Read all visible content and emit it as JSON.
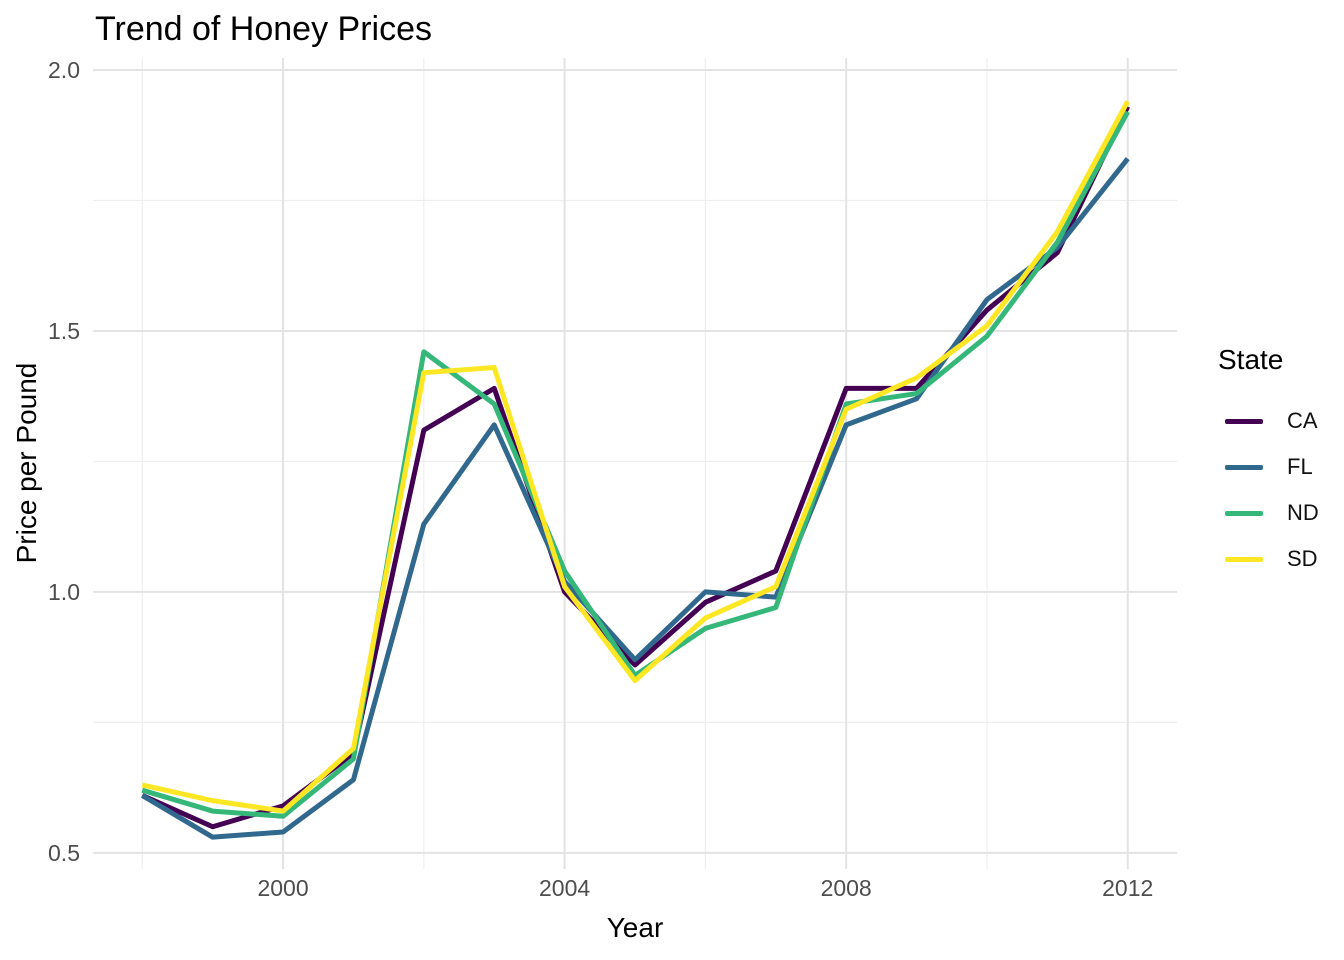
{
  "title": "Trend of Honey Prices",
  "x_axis": {
    "label": "Year"
  },
  "y_axis": {
    "label": "Price per Pound"
  },
  "legend": {
    "title": "State",
    "position": "right",
    "items": [
      {
        "label": "CA",
        "color": "#440154"
      },
      {
        "label": "FL",
        "color": "#31688E"
      },
      {
        "label": "ND",
        "color": "#35B779"
      },
      {
        "label": "SD",
        "color": "#FDE725"
      }
    ]
  },
  "chart_data": {
    "type": "line",
    "title": "Trend of Honey Prices",
    "xlabel": "Year",
    "ylabel": "Price per Pound",
    "x": [
      1998,
      1999,
      2000,
      2001,
      2002,
      2003,
      2004,
      2005,
      2006,
      2007,
      2008,
      2009,
      2010,
      2011,
      2012
    ],
    "series": [
      {
        "name": "CA",
        "color": "#440154",
        "values": [
          0.61,
          0.55,
          0.59,
          0.69,
          1.31,
          1.39,
          1.0,
          0.86,
          0.98,
          1.04,
          1.39,
          1.39,
          1.54,
          1.65,
          1.93
        ]
      },
      {
        "name": "FL",
        "color": "#31688E",
        "values": [
          0.61,
          0.53,
          0.54,
          0.64,
          1.13,
          1.32,
          1.02,
          0.87,
          1.0,
          0.99,
          1.32,
          1.37,
          1.56,
          1.66,
          1.83
        ]
      },
      {
        "name": "ND",
        "color": "#35B779",
        "values": [
          0.62,
          0.58,
          0.57,
          0.68,
          1.46,
          1.36,
          1.04,
          0.84,
          0.93,
          0.97,
          1.36,
          1.38,
          1.49,
          1.67,
          1.92
        ]
      },
      {
        "name": "SD",
        "color": "#FDE725",
        "values": [
          0.63,
          0.6,
          0.58,
          0.7,
          1.42,
          1.43,
          1.01,
          0.83,
          0.95,
          1.01,
          1.35,
          1.41,
          1.51,
          1.69,
          1.94
        ]
      }
    ],
    "xlim": [
      1997.3,
      2012.7
    ],
    "ylim": [
      0.469,
      2.023
    ],
    "x_major_ticks": [
      2000,
      2004,
      2008,
      2012
    ],
    "x_minor_ticks": [
      1998,
      2002,
      2006,
      2010
    ],
    "y_major_ticks": [
      0.5,
      1.0,
      1.5,
      2.0
    ],
    "y_minor_ticks": [
      0.75,
      1.25,
      1.75
    ],
    "x_tick_labels": [
      "2000",
      "2004",
      "2008",
      "2012"
    ],
    "y_tick_labels": [
      "0.5",
      "1.0",
      "1.5",
      "2.0"
    ],
    "grid": "major-and-minor",
    "legend_position": "right"
  },
  "colors": {
    "background": "#FFFFFF",
    "grid_major": "#E3E3E3",
    "grid_minor": "#EDEDED",
    "tick_text": "#4D4D4D",
    "title_text": "#000000"
  }
}
